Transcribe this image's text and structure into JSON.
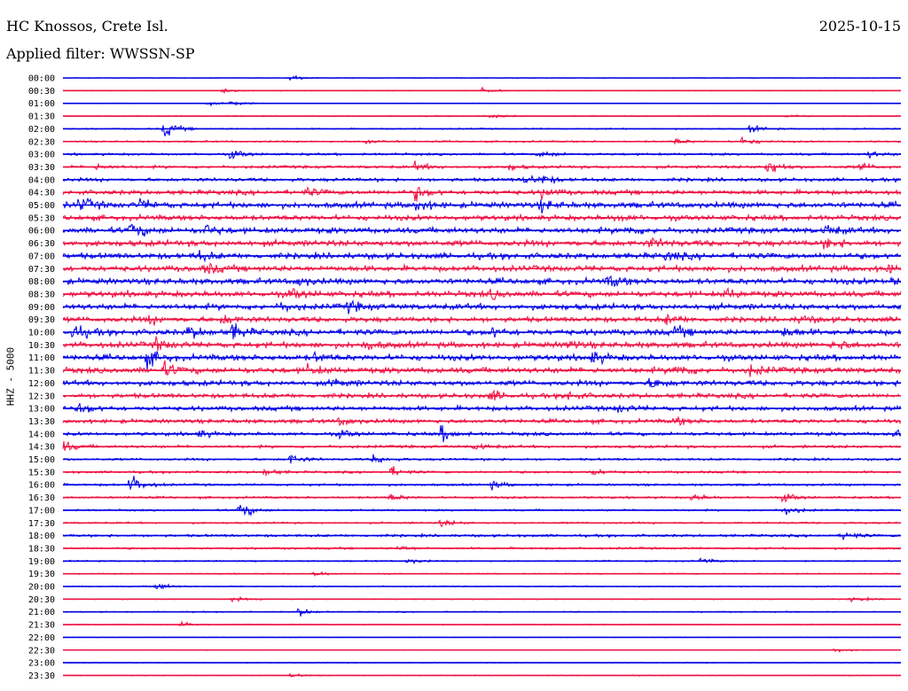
{
  "header": {
    "station": "HC Knossos, Crete Isl.",
    "date": "2025-10-15",
    "filter_label": "Applied filter: WWSSN-SP"
  },
  "chart_data": {
    "type": "line",
    "ylabel": "HHZ - 5000",
    "row_labels": [
      "00:00",
      "00:30",
      "01:00",
      "01:30",
      "02:00",
      "02:30",
      "03:00",
      "03:30",
      "04:00",
      "04:30",
      "05:00",
      "05:30",
      "06:00",
      "06:30",
      "07:00",
      "07:30",
      "08:00",
      "08:30",
      "09:00",
      "09:30",
      "10:00",
      "10:30",
      "11:00",
      "11:30",
      "12:00",
      "12:30",
      "13:00",
      "13:30",
      "14:00",
      "14:30",
      "15:00",
      "15:30",
      "16:00",
      "16:30",
      "17:00",
      "17:30",
      "18:00",
      "18:30",
      "19:00",
      "19:30",
      "20:00",
      "20:30",
      "21:00",
      "21:30",
      "22:00",
      "22:30",
      "23:00",
      "23:30"
    ],
    "series_colors": [
      "#0000e6",
      "#ee1142"
    ],
    "noise_levels": [
      0.5,
      0.7,
      0.6,
      0.8,
      1.2,
      1.5,
      2.0,
      2.5,
      3.0,
      4.0,
      5.0,
      4.5,
      5.0,
      5.0,
      5.0,
      5.0,
      5.0,
      5.0,
      5.0,
      4.5,
      5.0,
      5.0,
      5.0,
      5.0,
      4.5,
      4.0,
      4.0,
      3.5,
      3.0,
      2.5,
      2.0,
      2.0,
      2.0,
      1.8,
      1.6,
      1.6,
      2.2,
      1.8,
      1.2,
      1.0,
      1.0,
      0.9,
      1.0,
      0.8,
      0.5,
      0.6,
      0.8,
      0.7
    ],
    "events": [
      [
        [
          0.27,
          3
        ]
      ],
      [
        [
          0.19,
          3
        ],
        [
          0.5,
          3
        ]
      ],
      [
        [
          0.17,
          2
        ],
        [
          0.2,
          3
        ]
      ],
      [
        [
          0.51,
          3
        ],
        [
          0.86,
          2
        ]
      ],
      [
        [
          0.12,
          9
        ],
        [
          0.82,
          4
        ]
      ],
      [
        [
          0.36,
          3
        ],
        [
          0.73,
          3
        ],
        [
          0.81,
          5
        ]
      ],
      [
        [
          0.2,
          5
        ],
        [
          0.57,
          4
        ],
        [
          0.96,
          4
        ]
      ],
      [
        [
          0.04,
          3
        ],
        [
          0.42,
          4
        ],
        [
          0.53,
          3
        ],
        [
          0.84,
          9
        ],
        [
          0.95,
          4
        ]
      ],
      [
        [
          0.55,
          5
        ],
        [
          0.57,
          4
        ]
      ],
      [
        [
          0.42,
          7
        ],
        [
          0.57,
          5
        ],
        [
          0.29,
          4
        ]
      ],
      [
        [
          0.02,
          7
        ],
        [
          0.09,
          5
        ],
        [
          0.42,
          6
        ],
        [
          0.57,
          5
        ]
      ],
      [
        [
          0.66,
          3
        ]
      ],
      [
        [
          0.08,
          8
        ],
        [
          0.17,
          5
        ],
        [
          0.67,
          4
        ],
        [
          0.91,
          5
        ]
      ],
      [
        [
          0.7,
          5
        ],
        [
          0.91,
          5
        ]
      ],
      [
        [
          0.16,
          5
        ],
        [
          0.72,
          4
        ]
      ],
      [
        [
          0.17,
          5
        ],
        [
          0.98,
          4
        ]
      ],
      [
        [
          0.28,
          4
        ],
        [
          0.65,
          6
        ],
        [
          0.99,
          7
        ]
      ],
      [
        [
          0.27,
          5
        ],
        [
          0.51,
          4
        ],
        [
          0.79,
          5
        ]
      ],
      [
        [
          0.26,
          4
        ],
        [
          0.34,
          5
        ]
      ],
      [
        [
          0.1,
          4
        ],
        [
          0.19,
          5
        ],
        [
          0.72,
          5
        ],
        [
          0.88,
          4
        ]
      ],
      [
        [
          0.01,
          8
        ],
        [
          0.15,
          6
        ],
        [
          0.2,
          9
        ],
        [
          0.51,
          5
        ],
        [
          0.73,
          5
        ],
        [
          0.86,
          5
        ]
      ],
      [
        [
          0.11,
          6
        ],
        [
          0.36,
          5
        ],
        [
          0.6,
          4
        ],
        [
          0.92,
          5
        ]
      ],
      [
        [
          0.1,
          8
        ],
        [
          0.3,
          4
        ],
        [
          0.63,
          6
        ]
      ],
      [
        [
          0.12,
          6
        ],
        [
          0.29,
          5
        ],
        [
          0.73,
          7
        ],
        [
          0.82,
          5
        ]
      ],
      [
        [
          0.32,
          4
        ],
        [
          0.7,
          6
        ]
      ],
      [
        [
          0.51,
          5
        ],
        [
          0.6,
          5
        ]
      ],
      [
        [
          0.02,
          5
        ],
        [
          0.66,
          4
        ]
      ],
      [
        [
          0.33,
          4
        ],
        [
          0.73,
          4
        ]
      ],
      [
        [
          0.16,
          4
        ],
        [
          0.33,
          4
        ],
        [
          0.45,
          8
        ],
        [
          0.99,
          5
        ]
      ],
      [
        [
          0.0,
          5
        ],
        [
          0.49,
          4
        ]
      ],
      [
        [
          0.27,
          6
        ],
        [
          0.37,
          5
        ]
      ],
      [
        [
          0.24,
          4
        ],
        [
          0.39,
          5
        ],
        [
          0.63,
          4
        ]
      ],
      [
        [
          0.08,
          10
        ],
        [
          0.51,
          4
        ]
      ],
      [
        [
          0.39,
          4
        ],
        [
          0.75,
          4
        ],
        [
          0.86,
          5
        ]
      ],
      [
        [
          0.21,
          9
        ],
        [
          0.86,
          6
        ]
      ],
      [
        [
          0.45,
          4
        ]
      ],
      [
        [
          0.93,
          5
        ]
      ],
      [
        [
          0.4,
          3
        ]
      ],
      [
        [
          0.41,
          3
        ],
        [
          0.76,
          3
        ]
      ],
      [
        [
          0.3,
          3
        ]
      ],
      [
        [
          0.11,
          5
        ]
      ],
      [
        [
          0.2,
          3
        ],
        [
          0.94,
          3
        ]
      ],
      [
        [
          0.28,
          5
        ]
      ],
      [
        [
          0.14,
          3
        ]
      ],
      [],
      [
        [
          0.92,
          3
        ]
      ],
      [],
      [
        [
          0.27,
          3
        ]
      ]
    ]
  }
}
